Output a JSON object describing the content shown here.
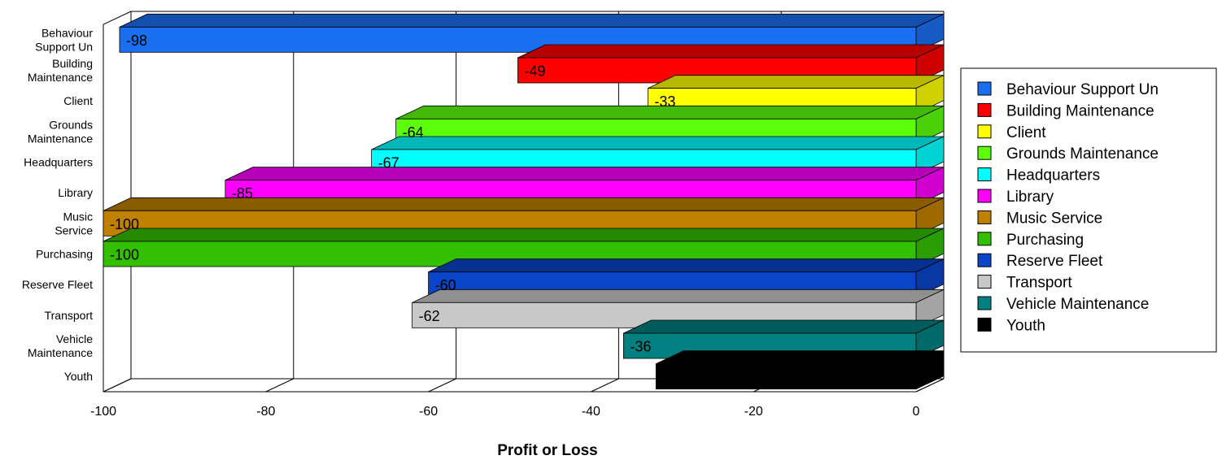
{
  "chart_data": {
    "type": "bar",
    "orientation": "horizontal",
    "style": "3d",
    "xlabel": "Profit or Loss",
    "ylabel": "",
    "xlim": [
      -100,
      0
    ],
    "x_ticks": [
      "-100",
      "-80",
      "-60",
      "-40",
      "-20",
      "0"
    ],
    "grid": "vertical",
    "legend_position": "right",
    "series": [
      {
        "name": "Behaviour Support Un",
        "axis_label": [
          "Behaviour",
          "Support Un"
        ],
        "value": -98,
        "data_label": "-98",
        "color": "#1a6ef0"
      },
      {
        "name": "Building Maintenance",
        "axis_label": [
          "Building",
          "Maintenance"
        ],
        "value": -49,
        "data_label": "-49",
        "color": "#ff0000"
      },
      {
        "name": "Client",
        "axis_label": [
          "Client"
        ],
        "value": -33,
        "data_label": "-33",
        "color": "#ffff00"
      },
      {
        "name": "Grounds Maintenance",
        "axis_label": [
          "Grounds",
          "Maintenance"
        ],
        "value": -64,
        "data_label": "-64",
        "color": "#5cff0a"
      },
      {
        "name": "Headquarters",
        "axis_label": [
          "Headquarters"
        ],
        "value": -67,
        "data_label": "-67",
        "color": "#00ffff"
      },
      {
        "name": "Library",
        "axis_label": [
          "Library"
        ],
        "value": -85,
        "data_label": "-85",
        "color": "#ff00ff"
      },
      {
        "name": "Music Service",
        "axis_label": [
          "Music",
          "Service"
        ],
        "value": -100,
        "data_label": "-100",
        "color": "#c08000"
      },
      {
        "name": "Purchasing",
        "axis_label": [
          "Purchasing"
        ],
        "value": -100,
        "data_label": "-100",
        "color": "#33c000"
      },
      {
        "name": "Reserve Fleet",
        "axis_label": [
          "Reserve Fleet"
        ],
        "value": -60,
        "data_label": "-60",
        "color": "#0a44c8"
      },
      {
        "name": "Transport",
        "axis_label": [
          "Transport"
        ],
        "value": -62,
        "data_label": "-62",
        "color": "#c8c8c8"
      },
      {
        "name": "Vehicle Maintenance",
        "axis_label": [
          "Vehicle",
          "Maintenance"
        ],
        "value": -36,
        "data_label": "-36",
        "color": "#008080"
      },
      {
        "name": "Youth",
        "axis_label": [
          "Youth"
        ],
        "value": -32,
        "data_label": "",
        "color": "#000000"
      }
    ]
  }
}
